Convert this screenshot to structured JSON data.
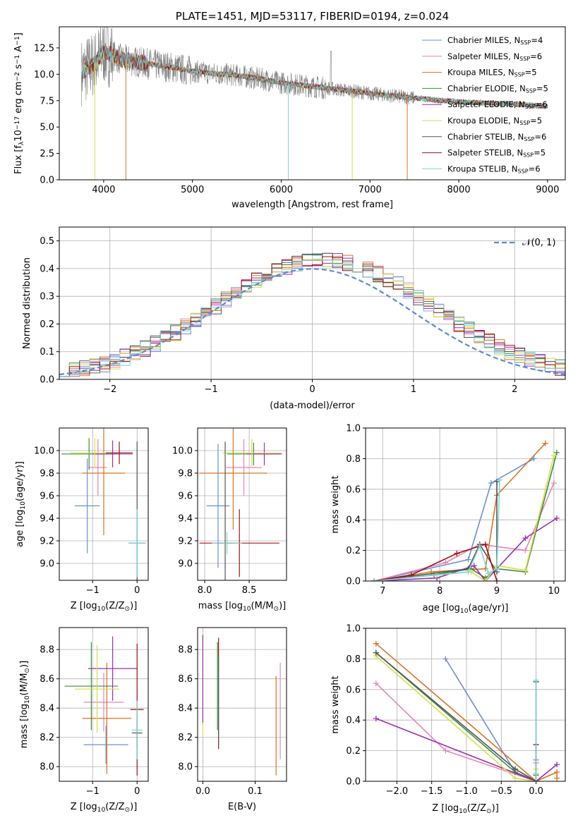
{
  "colors": {
    "chabrier_miles": "#6a8fd8",
    "salpeter_miles": "#e684b8",
    "kroupa_miles": "#d9731e",
    "chabrier_elodie": "#3c8c3c",
    "salpeter_elodie": "#9a2fb3",
    "kroupa_elodie": "#d4e04a",
    "chabrier_stelib": "#555555",
    "salpeter_stelib": "#a01010",
    "kroupa_stelib": "#7fd6d6",
    "normal": "#5b8bd6",
    "data_spectrum": "#808080"
  },
  "chart_data": [
    {
      "id": "spectrum",
      "type": "line",
      "title": "PLATE=1451, MJD=53117, FIBERID=0194, z=0.024",
      "xlabel": "wavelength [Angstrom, rest frame]",
      "ylabel": "Flux [f",
      "ylabel_sub": "λ",
      "ylabel_rest": "10",
      "ylabel_exp": "−17",
      "ylabel_unit": " erg cm",
      "ylabel_unit_exp": "−2",
      "ylabel_unit2": " s",
      "ylabel_unit2_exp": "−1",
      "ylabel_unit3": " A",
      "ylabel_unit3_exp": "−1",
      "ylabel_end": "]",
      "xlim": [
        3500,
        9200
      ],
      "ylim": [
        0,
        14.5
      ],
      "xticks": [
        4000,
        5000,
        6000,
        7000,
        8000,
        9000
      ],
      "yticks": [
        0.0,
        2.5,
        5.0,
        7.5,
        10.0,
        12.5
      ],
      "ytick_labels": [
        "0.0",
        "2.5",
        "5.0",
        "7.5",
        "10.0",
        "12.5"
      ],
      "legend_position": "top-right",
      "legend": [
        {
          "name": "Chabrier MILES, N",
          "sub": "SSP",
          "tail": "=4",
          "color": "#6a8fd8"
        },
        {
          "name": "Salpeter MILES, N",
          "sub": "SSP",
          "tail": "=6",
          "color": "#e684b8"
        },
        {
          "name": "Kroupa MILES, N",
          "sub": "SSP",
          "tail": "=5",
          "color": "#d9731e"
        },
        {
          "name": "Chabrier ELODIE, N",
          "sub": "SSP",
          "tail": "=5",
          "color": "#3c8c3c"
        },
        {
          "name": "Salpeter ELODIE, N",
          "sub": "SSP",
          "tail": "=6",
          "color": "#9a2fb3"
        },
        {
          "name": "Kroupa ELODIE, N",
          "sub": "SSP",
          "tail": "=5",
          "color": "#d4e04a"
        },
        {
          "name": "Chabrier STELIB, N",
          "sub": "SSP",
          "tail": "=6",
          "color": "#555555"
        },
        {
          "name": "Salpeter STELIB, N",
          "sub": "SSP",
          "tail": "=5",
          "color": "#a01010"
        },
        {
          "name": "Kroupa STELIB, N",
          "sub": "SSP",
          "tail": "=6",
          "color": "#7fd6d6"
        }
      ],
      "continuum": [
        [
          3750,
          10.2
        ],
        [
          3900,
          11.0
        ],
        [
          4000,
          12.2
        ],
        [
          4200,
          11.4
        ],
        [
          4500,
          11.0
        ],
        [
          4800,
          10.6
        ],
        [
          5000,
          10.3
        ],
        [
          5200,
          10.1
        ],
        [
          5500,
          9.9
        ],
        [
          5800,
          9.5
        ],
        [
          6000,
          9.2
        ],
        [
          6300,
          8.9
        ],
        [
          6600,
          8.6
        ],
        [
          6900,
          8.3
        ],
        [
          7200,
          8.0
        ],
        [
          7450,
          7.8
        ],
        [
          7800,
          7.5
        ],
        [
          8200,
          7.3
        ],
        [
          8600,
          7.2
        ],
        [
          8900,
          7.0
        ],
        [
          9000,
          7.0
        ]
      ],
      "model_spikes": [
        [
          3900,
          0,
          "#d4e04a"
        ],
        [
          4250,
          0,
          "#d9731e"
        ],
        [
          6080,
          0,
          "#7fd6d6"
        ],
        [
          6800,
          0,
          "#d4e04a"
        ],
        [
          7420,
          0,
          "#d9731e"
        ]
      ]
    },
    {
      "id": "residuals",
      "type": "histogram",
      "xlabel": "(data-model)/error",
      "ylabel": "Normed distribution",
      "xlim": [
        -2.5,
        2.5
      ],
      "ylim": [
        0,
        0.55
      ],
      "xticks": [
        -2,
        -1,
        0,
        1,
        2
      ],
      "xtick_labels": [
        "−2",
        "−1",
        "0",
        "1",
        "2"
      ],
      "yticks": [
        0.0,
        0.1,
        0.2,
        0.3,
        0.4,
        0.5
      ],
      "ytick_labels": [
        "0.0",
        "0.1",
        "0.2",
        "0.3",
        "0.4",
        "0.5"
      ],
      "legend_position": "top-right",
      "legend_label": "𝒩(0, 1)",
      "bin_width": 0.1
    },
    {
      "id": "age_vs_Z",
      "type": "errorbar",
      "xlabel": "Z [log",
      "xlabel_sub": "10",
      "xlabel_rest": "(Z/Z",
      "xlabel_sub2": "⊙",
      "xlabel_end": ")]",
      "ylabel": "age  [log",
      "ylabel_sub": "10",
      "ylabel_rest": "(age/yr)]",
      "xlim": [
        -1.75,
        0.25
      ],
      "ylim": [
        8.85,
        10.2
      ],
      "xticks": [
        -1,
        0
      ],
      "xtick_labels": [
        "−1",
        "0"
      ],
      "yticks": [
        9.0,
        9.2,
        9.4,
        9.6,
        9.8,
        10.0
      ],
      "ytick_labels": [
        "9.0",
        "9.2",
        "9.4",
        "9.6",
        "9.8",
        "10.0"
      ],
      "points": [
        {
          "x": -1.12,
          "y": 9.51,
          "xerr": 0.28,
          "yerr": 0.42,
          "color": "#6a8fd8"
        },
        {
          "x": -0.88,
          "y": 9.85,
          "xerr": 0.2,
          "yerr": 0.25,
          "color": "#e684b8"
        },
        {
          "x": -0.75,
          "y": 9.8,
          "xerr": 0.48,
          "yerr": 0.55,
          "color": "#d9731e"
        },
        {
          "x": -1.08,
          "y": 9.97,
          "xerr": 0.62,
          "yerr": 0.14,
          "color": "#3c8c3c"
        },
        {
          "x": -0.55,
          "y": 9.97,
          "xerr": 0.45,
          "yerr": 0.12,
          "color": "#9a2fb3"
        },
        {
          "x": -0.95,
          "y": 9.98,
          "xerr": 0.55,
          "yerr": 0.13,
          "color": "#d4e04a"
        },
        {
          "x": 0.0,
          "y": 9.18,
          "xerr": 0.18,
          "yerr": 0.9,
          "color": "#555555"
        },
        {
          "x": -0.4,
          "y": 9.98,
          "xerr": 0.3,
          "yerr": 0.1,
          "color": "#a01010"
        },
        {
          "x": 0.0,
          "y": 9.18,
          "xerr": 0.2,
          "yerr": 0.3,
          "color": "#7fd6d6"
        }
      ]
    },
    {
      "id": "age_vs_mass",
      "type": "errorbar",
      "xlabel": "mass [log",
      "xlabel_sub": "10",
      "xlabel_rest": "(M/M",
      "xlabel_sub2": "⊙",
      "xlabel_end": ")]",
      "xlim": [
        7.92,
        8.92
      ],
      "ylim": [
        8.85,
        10.2
      ],
      "xticks": [
        8.0,
        8.5
      ],
      "xtick_labels": [
        "8.0",
        "8.5"
      ],
      "yticks": [
        9.0,
        9.2,
        9.4,
        9.6,
        9.8,
        10.0
      ],
      "ytick_labels": [
        "9.0",
        "9.2",
        "9.4",
        "9.6",
        "9.8",
        "10.0"
      ],
      "points": [
        {
          "x": 8.15,
          "y": 9.51,
          "xerr": 0.13,
          "yerr": 0.55,
          "color": "#6a8fd8"
        },
        {
          "x": 8.44,
          "y": 9.85,
          "xerr": 0.2,
          "yerr": 0.25,
          "color": "#e684b8"
        },
        {
          "x": 8.32,
          "y": 9.8,
          "xerr": 0.38,
          "yerr": 0.5,
          "color": "#d9731e"
        },
        {
          "x": 8.55,
          "y": 9.97,
          "xerr": 0.3,
          "yerr": 0.1,
          "color": "#3c8c3c"
        },
        {
          "x": 8.67,
          "y": 9.97,
          "xerr": 0.2,
          "yerr": 0.1,
          "color": "#9a2fb3"
        },
        {
          "x": 8.53,
          "y": 9.98,
          "xerr": 0.33,
          "yerr": 0.12,
          "color": "#d4e04a"
        },
        {
          "x": 8.23,
          "y": 9.18,
          "xerr": 0.09,
          "yerr": 0.9,
          "color": "#555555"
        },
        {
          "x": 8.39,
          "y": 9.18,
          "xerr": 0.45,
          "yerr": 0.3,
          "color": "#a01010"
        },
        {
          "x": 8.25,
          "y": 9.18,
          "xerr": 0.17,
          "yerr": 0.1,
          "color": "#7fd6d6"
        }
      ]
    },
    {
      "id": "mass_weight_vs_age",
      "type": "line",
      "xlabel": "age  [log",
      "xlabel_sub": "10",
      "xlabel_rest": "(age/yr)]",
      "ylabel": "mass weight",
      "xlim": [
        6.7,
        10.2
      ],
      "ylim": [
        0,
        1.0
      ],
      "xticks": [
        7,
        8,
        9,
        10
      ],
      "xtick_labels": [
        "7",
        "8",
        "9",
        "10"
      ],
      "yticks": [
        0.0,
        0.2,
        0.4,
        0.6,
        0.8,
        1.0
      ],
      "ytick_labels": [
        "0.0",
        "0.2",
        "0.4",
        "0.6",
        "0.8",
        "1.0"
      ],
      "series": [
        {
          "color": "#6a8fd8",
          "x": [
            6.85,
            8.5,
            8.9,
            9.65
          ],
          "y": [
            0.0,
            0.14,
            0.64,
            0.8
          ]
        },
        {
          "color": "#e684b8",
          "x": [
            6.85,
            8.1,
            8.7,
            9.5,
            10.0
          ],
          "y": [
            0.0,
            0.12,
            0.24,
            0.2,
            0.64
          ]
        },
        {
          "color": "#d9731e",
          "x": [
            6.85,
            7.85,
            8.8,
            9.0,
            9.85
          ],
          "y": [
            0.0,
            0.06,
            0.08,
            0.56,
            0.9
          ]
        },
        {
          "color": "#3c8c3c",
          "x": [
            6.85,
            7.9,
            8.55,
            8.8,
            9.0,
            9.5,
            10.05
          ],
          "y": [
            0.0,
            0.04,
            0.08,
            0.02,
            0.08,
            0.06,
            0.84
          ]
        },
        {
          "color": "#9a2fb3",
          "x": [
            6.85,
            7.95,
            8.6,
            8.8,
            9.0,
            9.5,
            10.05
          ],
          "y": [
            0.0,
            0.02,
            0.1,
            0.0,
            0.08,
            0.28,
            0.41
          ]
        },
        {
          "color": "#d4e04a",
          "x": [
            6.85,
            7.95,
            8.55,
            8.8,
            9.0,
            9.5,
            10.0
          ],
          "y": [
            0.0,
            0.04,
            0.06,
            0.0,
            0.1,
            0.07,
            0.82
          ]
        },
        {
          "color": "#555555",
          "x": [
            6.85,
            8.5,
            8.7,
            9.0,
            9.0
          ],
          "y": [
            0.0,
            0.08,
            0.24,
            0.06,
            0.65
          ]
        },
        {
          "color": "#a01010",
          "x": [
            6.85,
            7.5,
            8.3,
            8.8,
            9.0
          ],
          "y": [
            0.0,
            0.04,
            0.18,
            0.24,
            0.0
          ]
        },
        {
          "color": "#7fd6d6",
          "x": [
            6.85,
            8.5,
            8.7,
            8.85,
            9.0,
            9.05
          ],
          "y": [
            0.0,
            0.06,
            0.23,
            0.05,
            0.08,
            0.66
          ]
        }
      ]
    },
    {
      "id": "mass_vs_Z",
      "type": "errorbar",
      "xlabel": "Z [log",
      "xlabel_sub": "10",
      "xlabel_rest": "(Z/Z",
      "xlabel_sub2": "⊙",
      "xlabel_end": ")]",
      "ylabel": "mass [log",
      "ylabel_sub": "10",
      "ylabel_rest": "(M/M",
      "ylabel_sub2": "⊙",
      "ylabel_end": ")]",
      "xlim": [
        -1.75,
        0.25
      ],
      "ylim": [
        7.9,
        8.95
      ],
      "xticks": [
        -1,
        0
      ],
      "xtick_labels": [
        "−1",
        "0"
      ],
      "yticks": [
        8.0,
        8.2,
        8.4,
        8.6,
        8.8
      ],
      "ytick_labels": [
        "8.0",
        "8.2",
        "8.4",
        "8.6",
        "8.8"
      ],
      "points": [
        {
          "x": -0.7,
          "y": 8.15,
          "xerr": 0.5,
          "yerr": 0.13,
          "color": "#6a8fd8"
        },
        {
          "x": -0.75,
          "y": 8.44,
          "xerr": 0.45,
          "yerr": 0.2,
          "color": "#e684b8"
        },
        {
          "x": -0.68,
          "y": 8.33,
          "xerr": 0.55,
          "yerr": 0.38,
          "color": "#d9731e"
        },
        {
          "x": -1.03,
          "y": 8.55,
          "xerr": 0.6,
          "yerr": 0.3,
          "color": "#3c8c3c"
        },
        {
          "x": -0.55,
          "y": 8.67,
          "xerr": 0.55,
          "yerr": 0.22,
          "color": "#9a2fb3"
        },
        {
          "x": -0.9,
          "y": 8.53,
          "xerr": 0.5,
          "yerr": 0.3,
          "color": "#d4e04a"
        },
        {
          "x": 0.0,
          "y": 8.23,
          "xerr": 0.12,
          "yerr": 0.1,
          "color": "#555555"
        },
        {
          "x": 0.0,
          "y": 8.39,
          "xerr": 0.15,
          "yerr": 0.45,
          "color": "#a01010"
        },
        {
          "x": 0.0,
          "y": 8.25,
          "xerr": 0.12,
          "yerr": 0.2,
          "color": "#7fd6d6"
        }
      ]
    },
    {
      "id": "mass_vs_ebv",
      "type": "errorbar",
      "xlabel": "E(B-V)",
      "xlim": [
        -0.01,
        0.16
      ],
      "ylim": [
        7.9,
        8.95
      ],
      "xticks": [
        0.0,
        0.1
      ],
      "xtick_labels": [
        "0.0",
        "0.1"
      ],
      "yticks": [
        8.0,
        8.2,
        8.4,
        8.6,
        8.8
      ],
      "ytick_labels": [
        "8.0",
        "8.2",
        "8.4",
        "8.6",
        "8.8"
      ],
      "points": [
        {
          "x": 0.0,
          "y": 8.55,
          "xerr": 0.0,
          "yerr": 0.35,
          "color": "#d4e04a"
        },
        {
          "x": 0.0,
          "y": 8.6,
          "xerr": 0.0,
          "yerr": 0.3,
          "color": "#9a2fb3"
        },
        {
          "x": 0.028,
          "y": 8.55,
          "xerr": 0.0,
          "yerr": 0.3,
          "color": "#3c8c3c"
        },
        {
          "x": 0.03,
          "y": 8.5,
          "xerr": 0.0,
          "yerr": 0.38,
          "color": "#a01010"
        },
        {
          "x": 0.03,
          "y": 8.5,
          "xerr": 0.0,
          "yerr": 0.25,
          "color": "#7fd6d6"
        },
        {
          "x": 0.03,
          "y": 8.45,
          "xerr": 0.0,
          "yerr": 0.3,
          "color": "#555555"
        },
        {
          "x": 0.14,
          "y": 8.28,
          "xerr": 0.0,
          "yerr": 0.34,
          "color": "#d9731e"
        },
        {
          "x": 0.148,
          "y": 8.38,
          "xerr": 0.0,
          "yerr": 0.33,
          "color": "#e684b8"
        }
      ]
    },
    {
      "id": "mass_weight_vs_Z",
      "type": "line",
      "xlabel": "Z [log",
      "xlabel_sub": "10",
      "xlabel_rest": "(Z/Z",
      "xlabel_sub2": "⊙",
      "xlabel_end": ")]",
      "ylabel": "mass weight",
      "xlim": [
        -2.45,
        0.42
      ],
      "ylim": [
        0,
        1.0
      ],
      "xticks": [
        -2.0,
        -1.5,
        -1.0,
        -0.5,
        0.0
      ],
      "xtick_labels": [
        "−2.0",
        "−1.5",
        "−1.0",
        "−0.5",
        "0.0"
      ],
      "yticks": [
        0.0,
        0.2,
        0.4,
        0.6,
        0.8,
        1.0
      ],
      "ytick_labels": [
        "0.0",
        "0.2",
        "0.4",
        "0.6",
        "0.8",
        "1.0"
      ],
      "series": [
        {
          "color": "#6a8fd8",
          "x": [
            -1.3,
            -0.3,
            0.0,
            0.0
          ],
          "y": [
            0.8,
            0.06,
            0.0,
            0.14
          ]
        },
        {
          "color": "#e684b8",
          "x": [
            -2.3,
            -1.3,
            0.0,
            0.0
          ],
          "y": [
            0.64,
            0.2,
            0.0,
            0.12
          ]
        },
        {
          "color": "#d9731e",
          "x": [
            -2.3,
            0.0,
            0.3,
            0.3
          ],
          "y": [
            0.9,
            0.0,
            0.06,
            0.02
          ]
        },
        {
          "color": "#3c8c3c",
          "x": [
            -2.3,
            -0.3,
            0.0,
            0.0
          ],
          "y": [
            0.84,
            0.06,
            0.0,
            0.04
          ]
        },
        {
          "color": "#9a2fb3",
          "x": [
            -2.3,
            0.0,
            0.3
          ],
          "y": [
            0.41,
            0.0,
            0.11
          ]
        },
        {
          "color": "#d4e04a",
          "x": [
            -2.3,
            -0.3,
            0.0,
            0.0
          ],
          "y": [
            0.82,
            0.02,
            0.0,
            0.08
          ]
        },
        {
          "color": "#555555",
          "x": [
            -2.3,
            -0.3,
            0.0,
            0.0
          ],
          "y": [
            0.84,
            0.08,
            0.0,
            0.65
          ]
        },
        {
          "color": "#a01010",
          "x": [
            0.0,
            0.0
          ],
          "y": [
            0.0,
            0.24
          ]
        },
        {
          "color": "#7fd6d6",
          "x": [
            0.0,
            0.0,
            0.0
          ],
          "y": [
            0.0,
            0.05,
            0.66
          ]
        }
      ]
    }
  ]
}
